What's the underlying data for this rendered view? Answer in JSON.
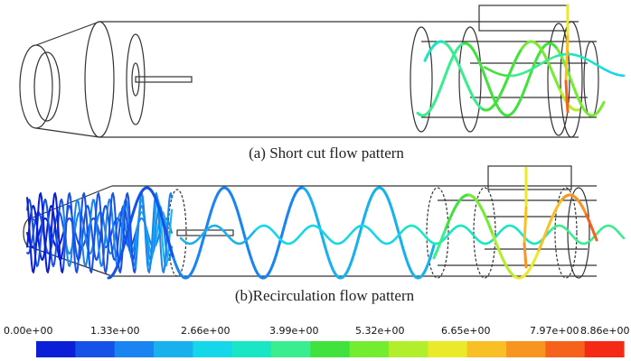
{
  "captions": {
    "a": "(a) Short cut flow pattern",
    "b": "(b)Recirculation flow pattern"
  },
  "colorbar": {
    "ticks": [
      "0.00e+00",
      "1.33e+00",
      "2.66e+00",
      "3.99e+00",
      "5.32e+00",
      "6.65e+00",
      "7.97e+00",
      "8.86e+00"
    ],
    "colors": [
      "#0a1fd6",
      "#1652e8",
      "#1a84f0",
      "#18b1ee",
      "#16d6ea",
      "#18e6c4",
      "#3aed8e",
      "#42e23e",
      "#74ec30",
      "#b2ee2c",
      "#eaea2a",
      "#f8c024",
      "#f89420",
      "#f6621c",
      "#f42a16"
    ]
  }
}
